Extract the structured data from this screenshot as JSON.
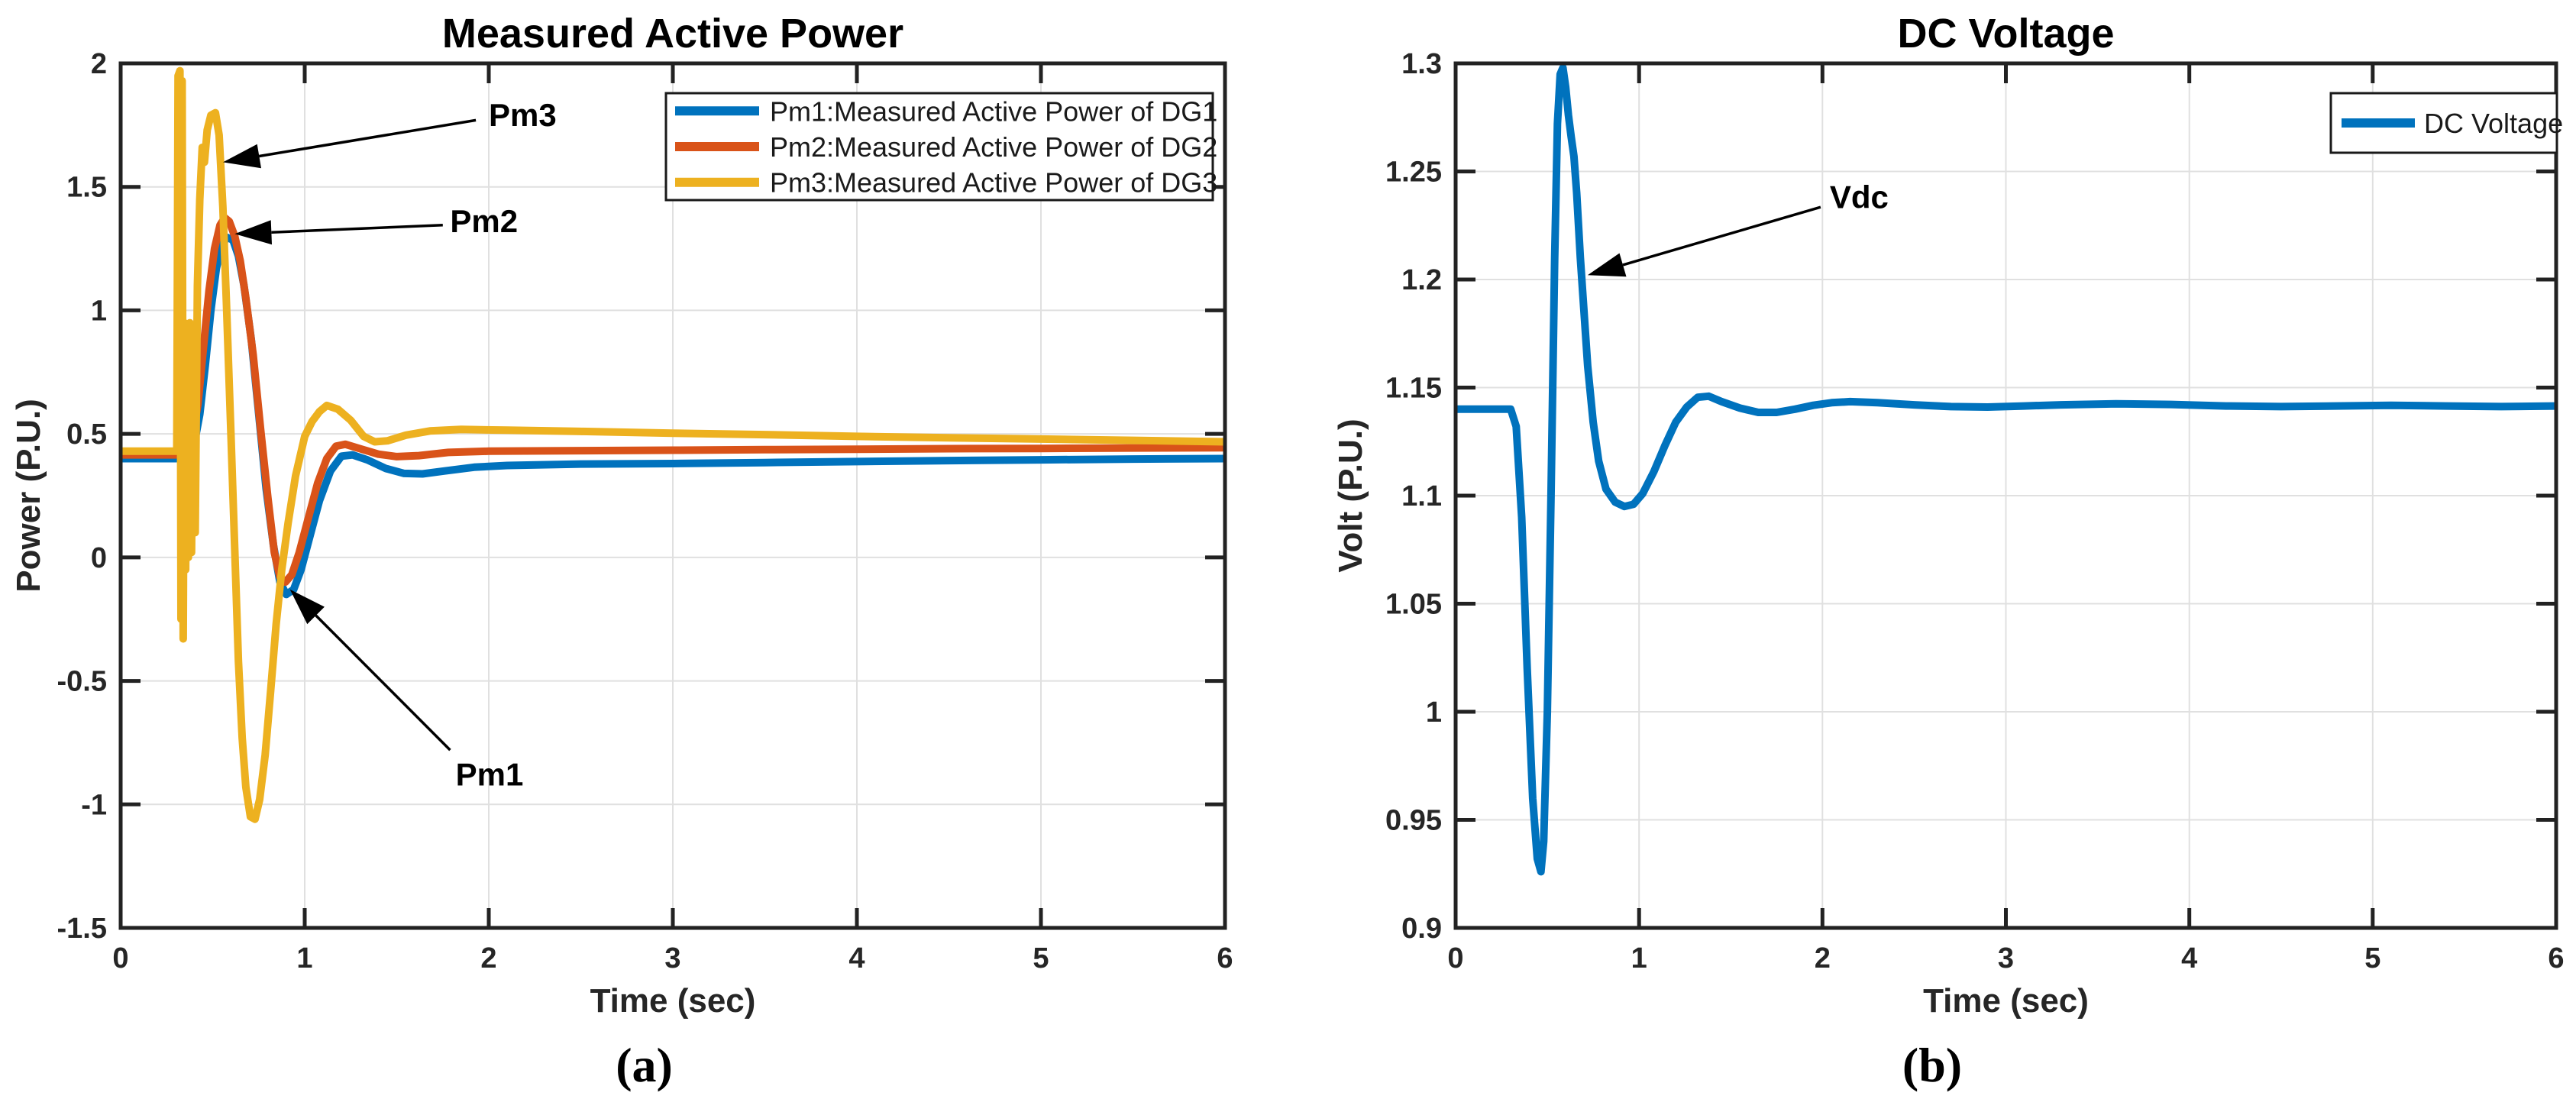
{
  "page": {
    "background": "#FFFFFF",
    "plot_bg": "#FFFFFF",
    "grid_color": "#E0E0E0",
    "axis_color": "#222222"
  },
  "chart_data": [
    {
      "type": "line",
      "panel_label": "(a)",
      "title": "Measured Active Power",
      "xlabel": "Time (sec)",
      "ylabel": "Power (P.U.)",
      "xlim": [
        0,
        6
      ],
      "ylim": [
        -1.5,
        2
      ],
      "xticks": [
        0,
        1,
        2,
        3,
        4,
        5,
        6
      ],
      "xtick_labels": [
        "0",
        "1",
        "2",
        "3",
        "4",
        "5",
        "6"
      ],
      "yticks": [
        -1.5,
        -1,
        -0.5,
        0,
        0.5,
        1,
        1.5,
        2
      ],
      "ytick_labels": [
        "-1.5",
        "-1",
        "-0.5",
        "0",
        "0.5",
        "1",
        "1.5",
        "2"
      ],
      "grid": true,
      "legend_position": "top-right",
      "legend": [
        {
          "label": "Pm1:Measured Active Power of DG1",
          "color": "#0072BD"
        },
        {
          "label": "Pm2:Measured Active Power of DG2",
          "color": "#D95319"
        },
        {
          "label": "Pm3:Measured Active Power of DG3",
          "color": "#EDB120"
        }
      ],
      "series": [
        {
          "name": "Pm1",
          "color": "#0072BD",
          "points": [
            [
              0,
              0.4
            ],
            [
              0.3,
              0.4
            ],
            [
              0.36,
              0.405
            ],
            [
              0.4,
              0.46
            ],
            [
              0.43,
              0.58
            ],
            [
              0.46,
              0.78
            ],
            [
              0.49,
              1.0
            ],
            [
              0.52,
              1.17
            ],
            [
              0.55,
              1.27
            ],
            [
              0.58,
              1.295
            ],
            [
              0.61,
              1.285
            ],
            [
              0.64,
              1.22
            ],
            [
              0.67,
              1.1
            ],
            [
              0.71,
              0.88
            ],
            [
              0.75,
              0.58
            ],
            [
              0.79,
              0.28
            ],
            [
              0.83,
              0.05
            ],
            [
              0.865,
              -0.1
            ],
            [
              0.9,
              -0.15
            ],
            [
              0.94,
              -0.13
            ],
            [
              0.98,
              -0.05
            ],
            [
              1.03,
              0.09
            ],
            [
              1.08,
              0.23
            ],
            [
              1.14,
              0.35
            ],
            [
              1.2,
              0.41
            ],
            [
              1.26,
              0.415
            ],
            [
              1.34,
              0.395
            ],
            [
              1.44,
              0.36
            ],
            [
              1.54,
              0.34
            ],
            [
              1.64,
              0.338
            ],
            [
              1.76,
              0.35
            ],
            [
              1.92,
              0.365
            ],
            [
              2.1,
              0.372
            ],
            [
              2.5,
              0.378
            ],
            [
              3,
              0.38
            ],
            [
              3.5,
              0.384
            ],
            [
              4,
              0.388
            ],
            [
              4.5,
              0.392
            ],
            [
              5,
              0.395
            ],
            [
              5.5,
              0.398
            ],
            [
              6,
              0.4
            ]
          ]
        },
        {
          "name": "Pm2",
          "color": "#D95319",
          "points": [
            [
              0,
              0.415
            ],
            [
              0.3,
              0.415
            ],
            [
              0.35,
              0.42
            ],
            [
              0.385,
              0.47
            ],
            [
              0.42,
              0.62
            ],
            [
              0.45,
              0.85
            ],
            [
              0.48,
              1.08
            ],
            [
              0.51,
              1.25
            ],
            [
              0.54,
              1.345
            ],
            [
              0.565,
              1.375
            ],
            [
              0.59,
              1.36
            ],
            [
              0.62,
              1.3
            ],
            [
              0.65,
              1.2
            ],
            [
              0.68,
              1.05
            ],
            [
              0.72,
              0.82
            ],
            [
              0.76,
              0.52
            ],
            [
              0.8,
              0.24
            ],
            [
              0.835,
              0.02
            ],
            [
              0.865,
              -0.08
            ],
            [
              0.895,
              -0.1
            ],
            [
              0.93,
              -0.07
            ],
            [
              0.97,
              0.02
            ],
            [
              1.02,
              0.16
            ],
            [
              1.07,
              0.3
            ],
            [
              1.12,
              0.4
            ],
            [
              1.17,
              0.45
            ],
            [
              1.22,
              0.458
            ],
            [
              1.3,
              0.44
            ],
            [
              1.4,
              0.418
            ],
            [
              1.5,
              0.408
            ],
            [
              1.62,
              0.412
            ],
            [
              1.78,
              0.425
            ],
            [
              2,
              0.43
            ],
            [
              2.5,
              0.432
            ],
            [
              3,
              0.434
            ],
            [
              3.5,
              0.436
            ],
            [
              4,
              0.438
            ],
            [
              4.5,
              0.44
            ],
            [
              5,
              0.441
            ],
            [
              5.5,
              0.443
            ],
            [
              6,
              0.444
            ]
          ]
        },
        {
          "name": "Pm3",
          "color": "#EDB120",
          "points": [
            [
              0,
              0.43
            ],
            [
              0.305,
              0.43
            ],
            [
              0.312,
              1.95
            ],
            [
              0.322,
              1.97
            ],
            [
              0.328,
              -0.25
            ],
            [
              0.334,
              1.93
            ],
            [
              0.34,
              -0.33
            ],
            [
              0.347,
              0.95
            ],
            [
              0.353,
              -0.05
            ],
            [
              0.36,
              0.93
            ],
            [
              0.368,
              0.0
            ],
            [
              0.376,
              0.95
            ],
            [
              0.385,
              0.02
            ],
            [
              0.395,
              0.9
            ],
            [
              0.405,
              0.1
            ],
            [
              0.417,
              1.1
            ],
            [
              0.43,
              1.45
            ],
            [
              0.443,
              1.66
            ],
            [
              0.455,
              1.6
            ],
            [
              0.47,
              1.73
            ],
            [
              0.49,
              1.79
            ],
            [
              0.515,
              1.8
            ],
            [
              0.535,
              1.71
            ],
            [
              0.555,
              1.42
            ],
            [
              0.575,
              1.02
            ],
            [
              0.6,
              0.48
            ],
            [
              0.62,
              0.03
            ],
            [
              0.64,
              -0.42
            ],
            [
              0.66,
              -0.73
            ],
            [
              0.68,
              -0.93
            ],
            [
              0.705,
              -1.05
            ],
            [
              0.73,
              -1.06
            ],
            [
              0.755,
              -0.98
            ],
            [
              0.785,
              -0.8
            ],
            [
              0.815,
              -0.54
            ],
            [
              0.845,
              -0.27
            ],
            [
              0.875,
              -0.05
            ],
            [
              0.91,
              0.14
            ],
            [
              0.95,
              0.33
            ],
            [
              1.0,
              0.49
            ],
            [
              1.04,
              0.55
            ],
            [
              1.08,
              0.59
            ],
            [
              1.12,
              0.615
            ],
            [
              1.18,
              0.6
            ],
            [
              1.25,
              0.555
            ],
            [
              1.32,
              0.49
            ],
            [
              1.38,
              0.468
            ],
            [
              1.45,
              0.472
            ],
            [
              1.55,
              0.495
            ],
            [
              1.68,
              0.512
            ],
            [
              1.85,
              0.518
            ],
            [
              2.1,
              0.515
            ],
            [
              2.5,
              0.51
            ],
            [
              3,
              0.503
            ],
            [
              3.5,
              0.497
            ],
            [
              4,
              0.49
            ],
            [
              4.5,
              0.484
            ],
            [
              5,
              0.479
            ],
            [
              5.5,
              0.474
            ],
            [
              6,
              0.468
            ]
          ]
        }
      ],
      "annotations": [
        {
          "text": "Pm3",
          "text_pos": [
            2.0,
            1.79
          ],
          "arrow_from": [
            1.93,
            1.77
          ],
          "arrow_to": [
            0.556,
            1.6
          ]
        },
        {
          "text": "Pm2",
          "text_pos": [
            1.79,
            1.36
          ],
          "arrow_from": [
            1.75,
            1.345
          ],
          "arrow_to": [
            0.62,
            1.31
          ]
        },
        {
          "text": "Pm1",
          "text_pos": [
            1.82,
            -0.88
          ],
          "arrow_from": [
            1.79,
            -0.78
          ],
          "arrow_to": [
            0.92,
            -0.13
          ]
        }
      ]
    },
    {
      "type": "line",
      "panel_label": "(b)",
      "title": "DC Voltage",
      "xlabel": "Time (sec)",
      "ylabel": "Volt (P.U.)",
      "xlim": [
        0,
        6
      ],
      "ylim": [
        0.9,
        1.3
      ],
      "xticks": [
        0,
        1,
        2,
        3,
        4,
        5,
        6
      ],
      "xtick_labels": [
        "0",
        "1",
        "2",
        "3",
        "4",
        "5",
        "6"
      ],
      "yticks": [
        0.9,
        0.95,
        1,
        1.05,
        1.1,
        1.15,
        1.2,
        1.25,
        1.3
      ],
      "ytick_labels": [
        "0.9",
        "0.95",
        "1",
        "1.05",
        "1.1",
        "1.15",
        "1.2",
        "1.25",
        "1.3"
      ],
      "grid": true,
      "legend_position": "top-right",
      "legend": [
        {
          "label": "DC Voltage",
          "color": "#0072BD"
        }
      ],
      "series": [
        {
          "name": "Vdc",
          "color": "#0072BD",
          "points": [
            [
              0,
              1.14
            ],
            [
              0.3,
              1.14
            ],
            [
              0.33,
              1.132
            ],
            [
              0.36,
              1.09
            ],
            [
              0.39,
              1.02
            ],
            [
              0.42,
              0.96
            ],
            [
              0.445,
              0.932
            ],
            [
              0.465,
              0.926
            ],
            [
              0.48,
              0.94
            ],
            [
              0.5,
              1.0
            ],
            [
              0.52,
              1.1
            ],
            [
              0.54,
              1.21
            ],
            [
              0.555,
              1.272
            ],
            [
              0.57,
              1.295
            ],
            [
              0.585,
              1.298
            ],
            [
              0.6,
              1.289
            ],
            [
              0.615,
              1.276
            ],
            [
              0.63,
              1.266
            ],
            [
              0.645,
              1.257
            ],
            [
              0.66,
              1.24
            ],
            [
              0.68,
              1.21
            ],
            [
              0.7,
              1.185
            ],
            [
              0.72,
              1.16
            ],
            [
              0.75,
              1.134
            ],
            [
              0.78,
              1.116
            ],
            [
              0.82,
              1.103
            ],
            [
              0.87,
              1.097
            ],
            [
              0.92,
              1.095
            ],
            [
              0.97,
              1.096
            ],
            [
              1.02,
              1.101
            ],
            [
              1.08,
              1.111
            ],
            [
              1.14,
              1.123
            ],
            [
              1.2,
              1.134
            ],
            [
              1.26,
              1.141
            ],
            [
              1.32,
              1.1455
            ],
            [
              1.38,
              1.146
            ],
            [
              1.45,
              1.1435
            ],
            [
              1.55,
              1.1405
            ],
            [
              1.65,
              1.1385
            ],
            [
              1.75,
              1.1385
            ],
            [
              1.85,
              1.14
            ],
            [
              1.95,
              1.1418
            ],
            [
              2.05,
              1.143
            ],
            [
              2.15,
              1.1435
            ],
            [
              2.3,
              1.143
            ],
            [
              2.5,
              1.142
            ],
            [
              2.7,
              1.1412
            ],
            [
              2.9,
              1.141
            ],
            [
              3.1,
              1.1415
            ],
            [
              3.3,
              1.142
            ],
            [
              3.6,
              1.1425
            ],
            [
              3.9,
              1.1422
            ],
            [
              4.2,
              1.1415
            ],
            [
              4.5,
              1.1412
            ],
            [
              4.8,
              1.1415
            ],
            [
              5.1,
              1.1418
            ],
            [
              5.4,
              1.1415
            ],
            [
              5.7,
              1.1412
            ],
            [
              6,
              1.1415
            ]
          ]
        }
      ],
      "annotations": [
        {
          "text": "Vdc",
          "text_pos": [
            2.04,
            1.238
          ],
          "arrow_from": [
            1.99,
            1.2335
          ],
          "arrow_to": [
            0.72,
            1.202
          ]
        }
      ]
    }
  ]
}
